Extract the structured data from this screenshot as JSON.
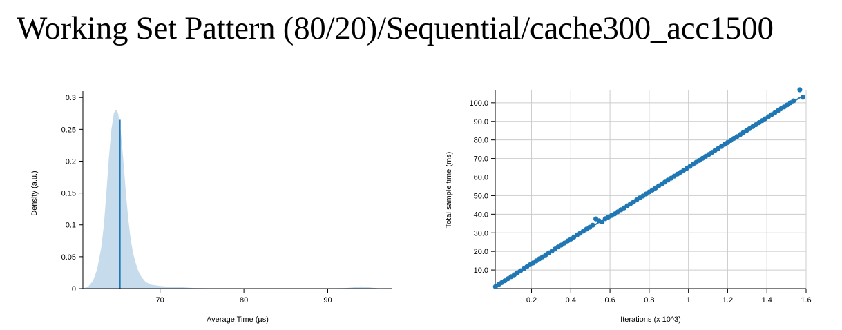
{
  "page": {
    "title": "Working Set Pattern (80/20)/Sequential/cache300_acc1500"
  },
  "colors": {
    "density_fill": "#c6dbec",
    "mean_line": "#1f77b4",
    "point": "#1f77b4",
    "grid": "#cccccc",
    "axis": "#000000"
  },
  "chart_data": [
    {
      "type": "area",
      "name": "density",
      "xlabel": "Average Time (µs)",
      "ylabel": "Density (a.u.)",
      "xlim": [
        60.8,
        97.7
      ],
      "ylim": [
        0,
        0.31
      ],
      "x_ticks": [
        70,
        80,
        90
      ],
      "x_tick_labels": [
        "70",
        "80",
        "90"
      ],
      "y_ticks": [
        0,
        0.05,
        0.1,
        0.15,
        0.2,
        0.25,
        0.3
      ],
      "y_tick_labels": [
        "0",
        "0.05",
        "0.1",
        "0.15",
        "0.2",
        "0.25",
        "0.3"
      ],
      "grid": false,
      "x": [
        61,
        61.5,
        62,
        62.5,
        63,
        63.3,
        63.6,
        63.9,
        64.2,
        64.5,
        64.8,
        65.0,
        65.3,
        65.6,
        65.9,
        66.2,
        66.5,
        66.8,
        67.1,
        67.4,
        67.8,
        68.3,
        69,
        70,
        71,
        72,
        73,
        74,
        76,
        80,
        85,
        90,
        92,
        93,
        93.5,
        94,
        94.5,
        95,
        96,
        97
      ],
      "y": [
        0.001,
        0.004,
        0.012,
        0.03,
        0.065,
        0.1,
        0.15,
        0.205,
        0.25,
        0.276,
        0.281,
        0.275,
        0.25,
        0.205,
        0.155,
        0.11,
        0.077,
        0.055,
        0.04,
        0.028,
        0.018,
        0.01,
        0.006,
        0.004,
        0.003,
        0.003,
        0.002,
        0.001,
        0.0005,
        0.0002,
        0.0001,
        0.0002,
        0.0008,
        0.002,
        0.003,
        0.0035,
        0.003,
        0.002,
        0.0005,
        0.0001
      ],
      "mean_line": {
        "x": 65.2,
        "y": 0.265
      }
    },
    {
      "type": "scatter",
      "name": "samples",
      "xlabel": "Iterations (x 10^3)",
      "ylabel": "Total sample time (ms)",
      "xlim": [
        0.015,
        1.6
      ],
      "ylim": [
        0,
        107
      ],
      "x_ticks": [
        0.2,
        0.4,
        0.6,
        0.8,
        1.0,
        1.2,
        1.4,
        1.6
      ],
      "x_tick_labels": [
        "0.2",
        "0.4",
        "0.6",
        "0.8",
        "1",
        "1.2",
        "1.4",
        "1.6"
      ],
      "y_ticks": [
        10,
        20,
        30,
        40,
        50,
        60,
        70,
        80,
        90,
        100
      ],
      "y_tick_labels": [
        "10.0",
        "20.0",
        "30.0",
        "40.0",
        "50.0",
        "60.0",
        "70.0",
        "80.0",
        "90.0",
        "100.0"
      ],
      "grid": true,
      "points": [
        [
          0.016,
          1.0
        ],
        [
          0.032,
          2.1
        ],
        [
          0.048,
          3.2
        ],
        [
          0.064,
          4.2
        ],
        [
          0.08,
          5.3
        ],
        [
          0.096,
          6.4
        ],
        [
          0.112,
          7.4
        ],
        [
          0.128,
          8.5
        ],
        [
          0.144,
          9.6
        ],
        [
          0.16,
          10.6
        ],
        [
          0.176,
          11.7
        ],
        [
          0.192,
          12.8
        ],
        [
          0.208,
          13.8
        ],
        [
          0.224,
          14.9
        ],
        [
          0.24,
          16.0
        ],
        [
          0.256,
          17.0
        ],
        [
          0.272,
          18.1
        ],
        [
          0.288,
          19.2
        ],
        [
          0.304,
          20.2
        ],
        [
          0.32,
          21.3
        ],
        [
          0.336,
          22.4
        ],
        [
          0.352,
          23.4
        ],
        [
          0.368,
          24.5
        ],
        [
          0.384,
          25.6
        ],
        [
          0.4,
          26.6
        ],
        [
          0.416,
          27.7
        ],
        [
          0.432,
          28.8
        ],
        [
          0.448,
          29.8
        ],
        [
          0.464,
          30.9
        ],
        [
          0.48,
          32.0
        ],
        [
          0.496,
          33.0
        ],
        [
          0.512,
          34.1
        ],
        [
          0.528,
          37.5
        ],
        [
          0.544,
          36.5
        ],
        [
          0.56,
          35.8
        ],
        [
          0.576,
          37.6
        ],
        [
          0.592,
          38.5
        ],
        [
          0.608,
          39.3
        ],
        [
          0.624,
          40.2
        ],
        [
          0.64,
          41.3
        ],
        [
          0.656,
          42.4
        ],
        [
          0.672,
          43.4
        ],
        [
          0.688,
          44.5
        ],
        [
          0.704,
          45.6
        ],
        [
          0.72,
          46.6
        ],
        [
          0.736,
          47.7
        ],
        [
          0.752,
          48.8
        ],
        [
          0.768,
          49.8
        ],
        [
          0.784,
          50.9
        ],
        [
          0.8,
          52.0
        ],
        [
          0.816,
          53.0
        ],
        [
          0.832,
          54.1
        ],
        [
          0.848,
          55.2
        ],
        [
          0.864,
          56.2
        ],
        [
          0.88,
          57.3
        ],
        [
          0.896,
          58.4
        ],
        [
          0.912,
          59.4
        ],
        [
          0.928,
          60.5
        ],
        [
          0.944,
          61.6
        ],
        [
          0.96,
          62.6
        ],
        [
          0.976,
          63.7
        ],
        [
          0.992,
          64.8
        ],
        [
          1.008,
          65.8
        ],
        [
          1.024,
          66.9
        ],
        [
          1.04,
          68.0
        ],
        [
          1.056,
          69.0
        ],
        [
          1.072,
          70.1
        ],
        [
          1.088,
          71.2
        ],
        [
          1.104,
          72.2
        ],
        [
          1.12,
          73.3
        ],
        [
          1.136,
          74.4
        ],
        [
          1.152,
          75.4
        ],
        [
          1.168,
          76.5
        ],
        [
          1.184,
          77.6
        ],
        [
          1.2,
          78.6
        ],
        [
          1.216,
          79.7
        ],
        [
          1.232,
          80.8
        ],
        [
          1.248,
          81.8
        ],
        [
          1.264,
          82.9
        ],
        [
          1.28,
          84.0
        ],
        [
          1.296,
          85.0
        ],
        [
          1.312,
          86.1
        ],
        [
          1.328,
          87.2
        ],
        [
          1.344,
          88.2
        ],
        [
          1.36,
          89.3
        ],
        [
          1.376,
          90.4
        ],
        [
          1.392,
          91.4
        ],
        [
          1.408,
          92.5
        ],
        [
          1.424,
          93.6
        ],
        [
          1.44,
          94.6
        ],
        [
          1.456,
          95.7
        ],
        [
          1.472,
          96.8
        ],
        [
          1.488,
          97.8
        ],
        [
          1.504,
          98.9
        ],
        [
          1.52,
          100.0
        ],
        [
          1.536,
          101.0
        ],
        [
          1.568,
          107.0
        ],
        [
          1.584,
          103.0
        ]
      ]
    }
  ]
}
